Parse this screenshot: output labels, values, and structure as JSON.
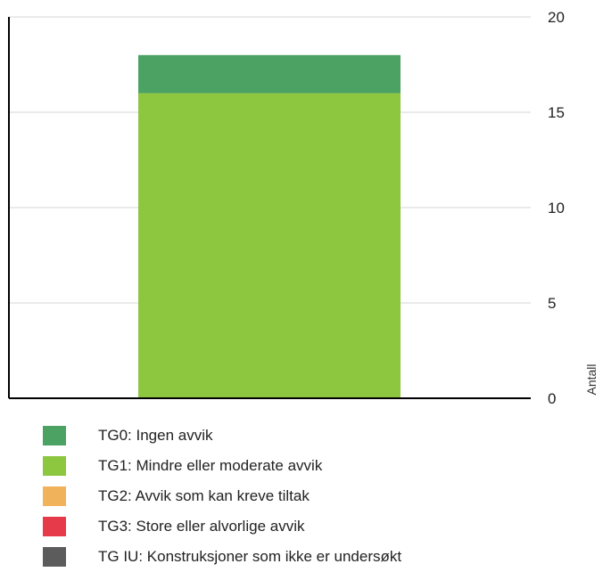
{
  "chart_data": {
    "type": "bar",
    "stacked": true,
    "categories": [
      ""
    ],
    "series": [
      {
        "name": "TG0: Ingen avvik",
        "color": "#4ba262",
        "values": [
          2
        ]
      },
      {
        "name": "TG1: Mindre eller moderate avvik",
        "color": "#8dc63f",
        "values": [
          16
        ]
      },
      {
        "name": "TG2: Avvik som kan kreve tiltak",
        "color": "#f0b25a",
        "values": [
          0
        ]
      },
      {
        "name": "TG3: Store eller alvorlige avvik",
        "color": "#e63a4a",
        "values": [
          0
        ]
      },
      {
        "name": "TG IU: Konstruksjoner som ikke er undersøkt",
        "color": "#5c5c5c",
        "values": [
          0
        ]
      }
    ],
    "ylabel": "Antall",
    "ylim": [
      0,
      20
    ],
    "yticks": [
      "0",
      "5",
      "10",
      "15",
      "20"
    ],
    "y_axis_position": "right",
    "grid": true,
    "legend_position": "bottom"
  }
}
